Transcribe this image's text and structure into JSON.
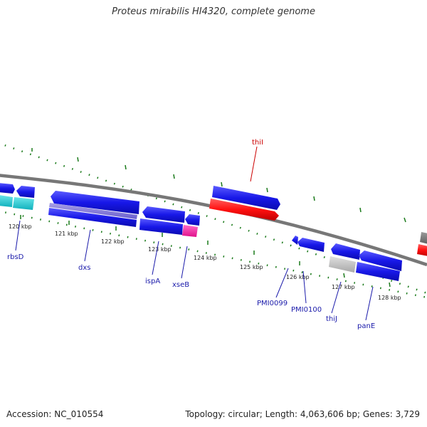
{
  "title": "Proteus mirabilis HI4320, complete genome",
  "footer": {
    "accession": "Accession: NC_010554",
    "stats": "Topology: circular; Length: 4,063,606 bp; Genes: 3,729"
  },
  "colors": {
    "forward_cds": "#1010e0",
    "reverse_cds": "#1010e0",
    "rna": "#ff1010",
    "highlight": "#ff30a0",
    "cyan": "#20c8d0",
    "grey": "#bbbbbb",
    "tick": "#1a7a1a",
    "label": "#1a1aaa",
    "red_label": "#cc0000",
    "backbone": "#777777"
  },
  "scale_labels": [
    "120 kbp",
    "121 kbp",
    "122 kbp",
    "123 kbp",
    "124 kbp",
    "125 kbp",
    "126 kbp",
    "127 kbp",
    "128 kbp"
  ],
  "gene_labels": {
    "rbsD": "rbsD",
    "dxs": "dxs",
    "ispA": "ispA",
    "xseB": "xseB",
    "PMI0099": "PMI0099",
    "PMI0100": "PMI0100",
    "thiJ": "thiJ",
    "panE": "panE",
    "thiI": "thiI"
  }
}
